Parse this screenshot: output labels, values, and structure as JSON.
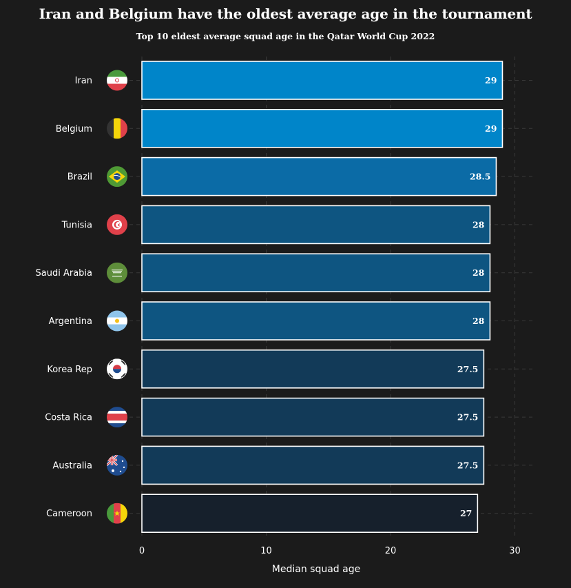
{
  "title": "Iran and Belgium have the oldest average age in the tournament",
  "subtitle": "Top 10 eldest average squad age in the Qatar World Cup 2022",
  "chart_data": {
    "type": "bar",
    "orientation": "horizontal",
    "title": "Iran and Belgium have the oldest average age in the tournament",
    "subtitle": "Top 10 eldest average squad age in the Qatar World Cup 2022",
    "xlabel": "Median squad age",
    "ylabel": "",
    "xlim": [
      0,
      30
    ],
    "xticks": [
      0,
      10,
      20,
      30
    ],
    "grid": true,
    "categories": [
      "Iran",
      "Belgium",
      "Brazil",
      "Tunisia",
      "Saudi Arabia",
      "Argentina",
      "Korea Rep",
      "Costa Rica",
      "Australia",
      "Cameroon"
    ],
    "values": [
      29,
      29,
      28.5,
      28,
      28,
      28,
      27.5,
      27.5,
      27.5,
      27
    ],
    "value_labels": [
      "29",
      "29",
      "28.5",
      "28",
      "28",
      "28",
      "27.5",
      "27.5",
      "27.5",
      "27"
    ],
    "bar_colors": [
      "#0085c9",
      "#0085c9",
      "#0b6ba6",
      "#0e5581",
      "#0e5581",
      "#0e5581",
      "#123a58",
      "#123a58",
      "#123a58",
      "#16202c"
    ],
    "flag_icons": [
      "iran-flag-icon",
      "belgium-flag-icon",
      "brazil-flag-icon",
      "tunisia-flag-icon",
      "saudi-arabia-flag-icon",
      "argentina-flag-icon",
      "korea-rep-flag-icon",
      "costa-rica-flag-icon",
      "australia-flag-icon",
      "cameroon-flag-icon"
    ]
  }
}
